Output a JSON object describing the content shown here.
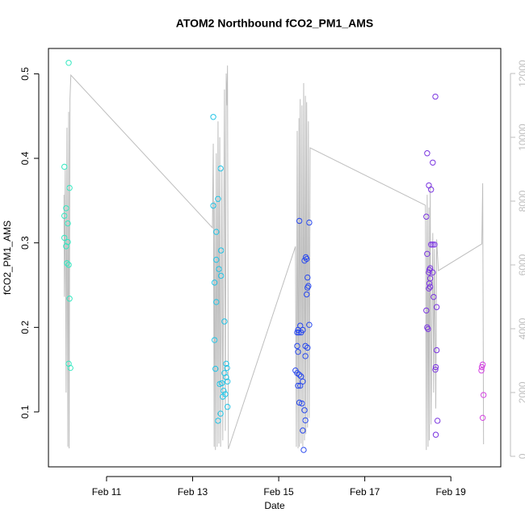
{
  "chart_data": {
    "type": "scatter",
    "title": "ATOM2 Northbound fCO2_PM1_AMS",
    "xlabel": "Date",
    "ylabel": "fCO2_PM1_AMS",
    "xlim": [
      9.65,
      20.16
    ],
    "xticks": [
      {
        "value": 11,
        "label": "Feb 11"
      },
      {
        "value": 13,
        "label": "Feb 13"
      },
      {
        "value": 15,
        "label": "Feb 15"
      },
      {
        "value": 17,
        "label": "Feb 17"
      },
      {
        "value": 19,
        "label": "Feb 19"
      }
    ],
    "ylim": [
      0.035,
      0.53
    ],
    "yticks": [
      0.1,
      0.2,
      0.3,
      0.4,
      0.5
    ],
    "y2lim": [
      -330,
      12785
    ],
    "y2ticks": [
      0,
      2000,
      4000,
      6000,
      8000,
      10000,
      12000
    ],
    "series": [
      {
        "color": "#33e8c0",
        "x": [
          10.12,
          10.02,
          10.06,
          10.14,
          10.02,
          10.1,
          10.02,
          10.1,
          10.06,
          10.08,
          10.12,
          10.14,
          10.12,
          10.16
        ],
        "values": [
          0.513,
          0.39,
          0.341,
          0.365,
          0.332,
          0.323,
          0.306,
          0.301,
          0.296,
          0.276,
          0.274,
          0.234,
          0.157,
          0.152
        ]
      },
      {
        "color": "#22c4e6",
        "x": [
          13.48,
          13.48,
          13.59,
          13.65,
          13.55,
          13.66,
          13.55,
          13.61,
          13.66,
          13.51,
          13.74,
          13.55,
          13.51,
          13.78,
          13.8,
          13.53,
          13.74,
          13.78,
          13.68,
          13.81,
          13.63,
          13.72,
          13.76,
          13.7,
          13.65,
          13.59,
          13.81
        ],
        "values": [
          0.449,
          0.344,
          0.352,
          0.388,
          0.313,
          0.291,
          0.28,
          0.269,
          0.261,
          0.253,
          0.207,
          0.23,
          0.185,
          0.157,
          0.152,
          0.151,
          0.146,
          0.141,
          0.134,
          0.136,
          0.133,
          0.125,
          0.121,
          0.118,
          0.098,
          0.0895,
          0.106
        ]
      },
      {
        "color": "#2848ee",
        "x": [
          15.48,
          15.71,
          15.63,
          15.65,
          15.6,
          15.67,
          15.69,
          15.67,
          15.65,
          15.71,
          15.5,
          15.45,
          15.56,
          15.47,
          15.43,
          15.52,
          15.43,
          15.62,
          15.67,
          15.45,
          15.62,
          15.39,
          15.43,
          15.48,
          15.52,
          15.56,
          15.45,
          15.5,
          15.48,
          15.54,
          15.6,
          15.62,
          15.56,
          15.58
        ],
        "values": [
          0.326,
          0.324,
          0.283,
          0.281,
          0.279,
          0.259,
          0.249,
          0.247,
          0.239,
          0.203,
          0.202,
          0.197,
          0.197,
          0.194,
          0.194,
          0.194,
          0.178,
          0.178,
          0.176,
          0.171,
          0.166,
          0.149,
          0.146,
          0.144,
          0.142,
          0.136,
          0.131,
          0.131,
          0.111,
          0.11,
          0.102,
          0.09,
          0.078,
          0.055
        ]
      },
      {
        "color": "#7a34e0",
        "x": [
          18.64,
          18.45,
          18.58,
          18.49,
          18.54,
          18.43,
          18.54,
          18.62,
          18.58,
          18.45,
          18.52,
          18.5,
          18.49,
          18.58,
          18.52,
          18.5,
          18.52,
          18.49,
          18.6,
          18.67,
          18.43,
          18.45,
          18.47,
          18.67,
          18.65,
          18.64,
          18.69,
          18.65
        ],
        "values": [
          0.473,
          0.406,
          0.395,
          0.368,
          0.363,
          0.331,
          0.298,
          0.298,
          0.298,
          0.287,
          0.27,
          0.268,
          0.265,
          0.265,
          0.258,
          0.252,
          0.248,
          0.246,
          0.236,
          0.224,
          0.22,
          0.2,
          0.198,
          0.173,
          0.153,
          0.15,
          0.0895,
          0.073
        ]
      },
      {
        "color": "#d440e2",
        "x": [
          19.74,
          19.72,
          19.71,
          19.76,
          19.74
        ],
        "values": [
          0.156,
          0.153,
          0.149,
          0.12,
          0.093
        ]
      },
      {
        "type": "line",
        "axis": "y2",
        "color": "#bebebe",
        "x": [
          10.01,
          10.02,
          10.04,
          10.06,
          10.08,
          10.1,
          10.12,
          10.13,
          10.15,
          10.17,
          13.46,
          13.48,
          13.5,
          13.51,
          13.53,
          13.55,
          13.57,
          13.59,
          13.61,
          13.63,
          13.65,
          13.68,
          13.7,
          13.74,
          13.76,
          13.78,
          13.8,
          13.81,
          13.83,
          15.39,
          15.41,
          15.43,
          15.45,
          15.47,
          15.48,
          15.5,
          15.52,
          15.54,
          15.56,
          15.58,
          15.6,
          15.62,
          15.63,
          15.65,
          15.67,
          15.69,
          15.71,
          15.73,
          18.41,
          18.43,
          18.45,
          18.47,
          18.49,
          18.5,
          18.52,
          18.54,
          18.58,
          18.6,
          18.62,
          18.65,
          18.67,
          18.71,
          19.72,
          19.74,
          19.76
        ],
        "values": [
          8200,
          5000,
          9000,
          2000,
          10300,
          300,
          10800,
          250,
          11200,
          11950,
          7165,
          9800,
          300,
          8000,
          200,
          9500,
          300,
          10500,
          400,
          10000,
          300,
          9000,
          500,
          11500,
          800,
          12000,
          11000,
          12250,
          230,
          6580,
          300,
          10200,
          250,
          10600,
          300,
          11200,
          400,
          11000,
          300,
          11700,
          500,
          11300,
          700,
          11100,
          900,
          10500,
          1200,
          9670,
          7870,
          200,
          8200,
          300,
          7800,
          500,
          8500,
          1000,
          7000,
          2000,
          6500,
          1500,
          6800,
          5820,
          6660,
          8560,
          380
        ]
      }
    ]
  }
}
